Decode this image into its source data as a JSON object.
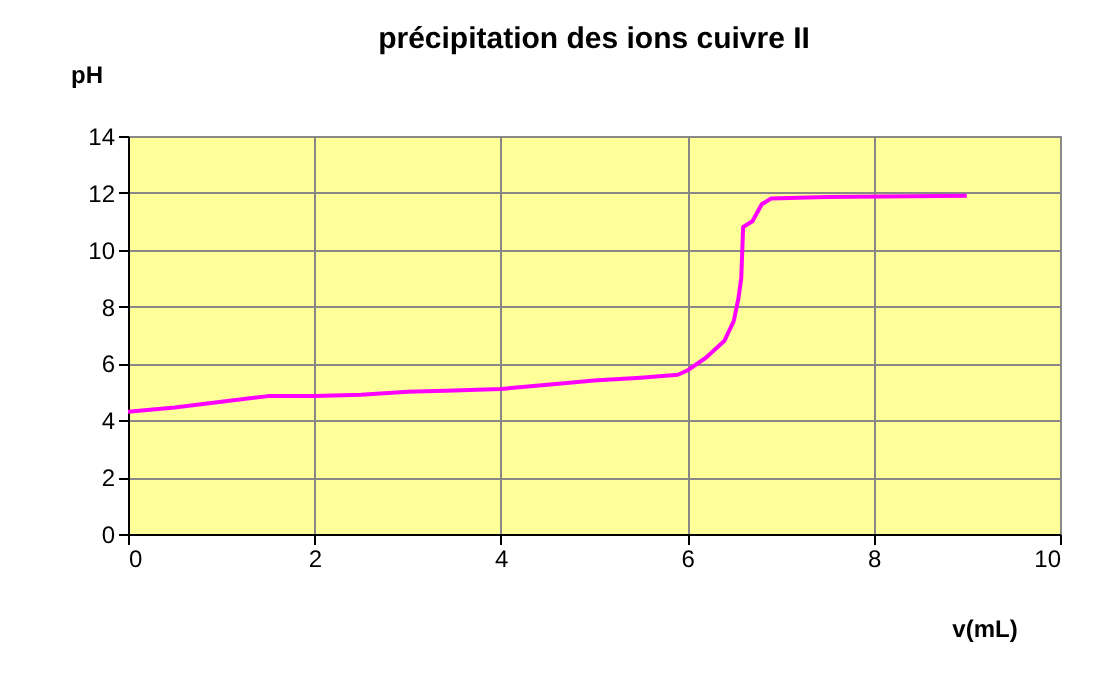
{
  "chart_data": {
    "type": "line",
    "title": "précipitation des ions cuivre II",
    "xlabel": "v(mL)",
    "ylabel": "pH",
    "x": [
      0,
      0.5,
      1,
      1.5,
      2,
      2.5,
      3,
      3.5,
      4,
      4.5,
      5,
      5.5,
      5.9,
      6.0,
      6.2,
      6.4,
      6.5,
      6.55,
      6.58,
      6.6,
      6.7,
      6.8,
      6.9,
      7.5,
      9
    ],
    "series": [
      {
        "color": "#ff00ff",
        "values": [
          4.3,
          4.45,
          4.65,
          4.85,
          4.85,
          4.9,
          5.0,
          5.05,
          5.1,
          5.25,
          5.4,
          5.5,
          5.6,
          5.75,
          6.2,
          6.8,
          7.5,
          8.3,
          9.0,
          10.8,
          11.0,
          11.6,
          11.8,
          11.85,
          11.9
        ]
      }
    ],
    "xlim": [
      0,
      10
    ],
    "xticks": [
      0,
      2,
      4,
      6,
      8,
      10
    ],
    "ylim": [
      0,
      14
    ],
    "yticks": [
      0,
      2,
      4,
      6,
      8,
      10,
      12,
      14
    ],
    "grid": true,
    "legend": false
  }
}
